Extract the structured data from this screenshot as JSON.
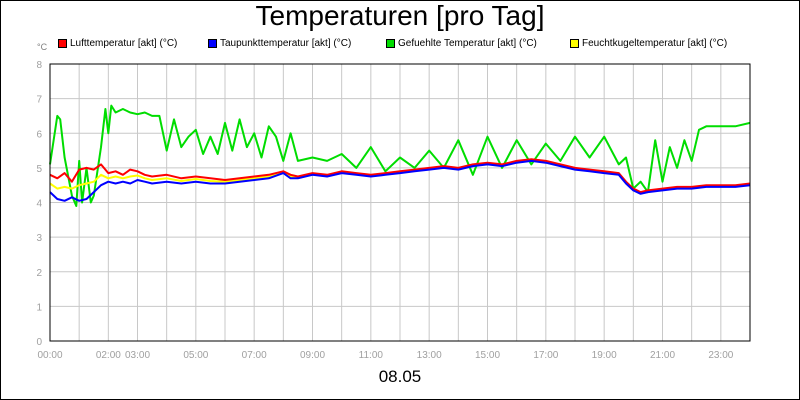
{
  "chart_data": {
    "type": "line",
    "title": "Temperaturen [pro Tag]",
    "ylabel": "°C",
    "xlabel": "08.05",
    "ylim": [
      0,
      8
    ],
    "yticks": [
      0,
      1,
      2,
      3,
      4,
      5,
      6,
      7,
      8
    ],
    "xlim": [
      0,
      24
    ],
    "xticks": [
      {
        "value": 0,
        "label": "00:00"
      },
      {
        "value": 2,
        "label": "02:00"
      },
      {
        "value": 3,
        "label": "03:00"
      },
      {
        "value": 5,
        "label": "05:00"
      },
      {
        "value": 7,
        "label": "07:00"
      },
      {
        "value": 9,
        "label": "09:00"
      },
      {
        "value": 11,
        "label": "11:00"
      },
      {
        "value": 13,
        "label": "13:00"
      },
      {
        "value": 15,
        "label": "15:00"
      },
      {
        "value": 17,
        "label": "17:00"
      },
      {
        "value": 19,
        "label": "19:00"
      },
      {
        "value": 21,
        "label": "21:00"
      },
      {
        "value": 23,
        "label": "23:00"
      }
    ],
    "grid": true,
    "legend_position": "top",
    "series": [
      {
        "name": "Lufttemperatur [akt] (°C)",
        "color": "#ff0000",
        "x": [
          0,
          0.25,
          0.5,
          0.75,
          1,
          1.25,
          1.5,
          1.75,
          2,
          2.25,
          2.5,
          2.75,
          3,
          3.25,
          3.5,
          4,
          4.5,
          5,
          5.5,
          6,
          6.5,
          7,
          7.5,
          8,
          8.25,
          8.5,
          9,
          9.5,
          10,
          10.5,
          11,
          11.5,
          12,
          12.5,
          13,
          13.5,
          14,
          14.5,
          15,
          15.5,
          16,
          16.5,
          17,
          17.5,
          18,
          18.5,
          19,
          19.5,
          19.75,
          20,
          20.25,
          20.5,
          21,
          21.5,
          22,
          22.5,
          23,
          23.5,
          24
        ],
        "y": [
          4.8,
          4.7,
          4.85,
          4.6,
          4.95,
          5.0,
          4.95,
          5.1,
          4.85,
          4.9,
          4.8,
          4.95,
          4.9,
          4.8,
          4.75,
          4.8,
          4.7,
          4.75,
          4.7,
          4.65,
          4.7,
          4.75,
          4.8,
          4.9,
          4.8,
          4.75,
          4.85,
          4.8,
          4.9,
          4.85,
          4.8,
          4.85,
          4.9,
          4.95,
          5.0,
          5.05,
          5.0,
          5.1,
          5.15,
          5.1,
          5.2,
          5.25,
          5.2,
          5.1,
          5.0,
          4.95,
          4.9,
          4.85,
          4.6,
          4.4,
          4.3,
          4.35,
          4.4,
          4.45,
          4.45,
          4.5,
          4.5,
          4.5,
          4.55
        ]
      },
      {
        "name": "Taupunkttemperatur [akt] (°C)",
        "color": "#0000ff",
        "x": [
          0,
          0.25,
          0.5,
          0.75,
          1,
          1.25,
          1.5,
          1.75,
          2,
          2.25,
          2.5,
          2.75,
          3,
          3.25,
          3.5,
          4,
          4.5,
          5,
          5.5,
          6,
          6.5,
          7,
          7.5,
          8,
          8.25,
          8.5,
          9,
          9.5,
          10,
          10.5,
          11,
          11.5,
          12,
          12.5,
          13,
          13.5,
          14,
          14.5,
          15,
          15.5,
          16,
          16.5,
          17,
          17.5,
          18,
          18.5,
          19,
          19.5,
          19.75,
          20,
          20.25,
          20.5,
          21,
          21.5,
          22,
          22.5,
          23,
          23.5,
          24
        ],
        "y": [
          4.3,
          4.1,
          4.05,
          4.15,
          4.05,
          4.1,
          4.3,
          4.5,
          4.6,
          4.55,
          4.6,
          4.55,
          4.65,
          4.6,
          4.55,
          4.6,
          4.55,
          4.6,
          4.55,
          4.55,
          4.6,
          4.65,
          4.7,
          4.85,
          4.7,
          4.7,
          4.8,
          4.75,
          4.85,
          4.8,
          4.75,
          4.8,
          4.85,
          4.9,
          4.95,
          5.0,
          4.95,
          5.05,
          5.1,
          5.05,
          5.15,
          5.2,
          5.15,
          5.05,
          4.95,
          4.9,
          4.85,
          4.8,
          4.55,
          4.35,
          4.25,
          4.3,
          4.35,
          4.4,
          4.4,
          4.45,
          4.45,
          4.45,
          4.5
        ]
      },
      {
        "name": "Gefuehlte Temperatur [akt] (°C)",
        "color": "#00dd00",
        "x": [
          0,
          0.25,
          0.35,
          0.5,
          0.75,
          0.9,
          1.0,
          1.1,
          1.25,
          1.4,
          1.5,
          1.75,
          1.9,
          2.0,
          2.1,
          2.25,
          2.5,
          2.75,
          3.0,
          3.25,
          3.5,
          3.75,
          4.0,
          4.25,
          4.5,
          4.75,
          5.0,
          5.25,
          5.5,
          5.75,
          6.0,
          6.25,
          6.5,
          6.75,
          7.0,
          7.25,
          7.5,
          7.75,
          8.0,
          8.25,
          8.5,
          9.0,
          9.5,
          10.0,
          10.5,
          11.0,
          11.5,
          12.0,
          12.5,
          13.0,
          13.5,
          14.0,
          14.5,
          15.0,
          15.5,
          16.0,
          16.5,
          17.0,
          17.5,
          18.0,
          18.5,
          19.0,
          19.5,
          19.75,
          20.0,
          20.25,
          20.5,
          20.75,
          21.0,
          21.25,
          21.5,
          21.75,
          22.0,
          22.25,
          22.5,
          23.0,
          23.5,
          24.0
        ],
        "y": [
          5.1,
          6.5,
          6.4,
          5.3,
          4.2,
          3.9,
          5.2,
          4.0,
          5.0,
          4.0,
          4.2,
          5.6,
          6.7,
          6.0,
          6.8,
          6.6,
          6.7,
          6.6,
          6.55,
          6.6,
          6.5,
          6.5,
          5.5,
          6.4,
          5.6,
          5.9,
          6.1,
          5.4,
          5.9,
          5.4,
          6.3,
          5.5,
          6.4,
          5.6,
          6.0,
          5.3,
          6.2,
          5.9,
          5.2,
          6.0,
          5.2,
          5.3,
          5.2,
          5.4,
          5.0,
          5.6,
          4.9,
          5.3,
          5.0,
          5.5,
          5.0,
          5.8,
          4.8,
          5.9,
          5.0,
          5.8,
          5.1,
          5.7,
          5.2,
          5.9,
          5.3,
          5.9,
          5.1,
          5.3,
          4.4,
          4.6,
          4.3,
          5.8,
          4.6,
          5.6,
          5.0,
          5.8,
          5.2,
          6.1,
          6.2,
          6.2,
          6.2,
          6.3
        ]
      },
      {
        "name": "Feuchtkugeltemperatur [akt] (°C)",
        "color": "#ffff00",
        "x": [
          0,
          0.25,
          0.5,
          0.75,
          1,
          1.25,
          1.5,
          1.75,
          2,
          2.25,
          2.5,
          2.75,
          3,
          3.25,
          3.5,
          4,
          4.5,
          5,
          5.5,
          6,
          6.5,
          7,
          7.5,
          8,
          8.25,
          8.5,
          9,
          9.5,
          10,
          10.5,
          11,
          11.5,
          12,
          12.5,
          13,
          13.5,
          14,
          14.5,
          15,
          15.5,
          16,
          16.5,
          17,
          17.5,
          18,
          18.5,
          19,
          19.5,
          19.75,
          20,
          20.25,
          20.5,
          21,
          21.5,
          22,
          22.5,
          23,
          23.5,
          24
        ],
        "y": [
          4.55,
          4.4,
          4.45,
          4.4,
          4.5,
          4.55,
          4.6,
          4.8,
          4.7,
          4.75,
          4.7,
          4.75,
          4.78,
          4.7,
          4.65,
          4.7,
          4.62,
          4.68,
          4.62,
          4.6,
          4.65,
          4.7,
          4.75,
          4.88,
          4.75,
          4.72,
          4.82,
          4.78,
          4.88,
          4.82,
          4.78,
          4.82,
          4.88,
          4.92,
          4.98,
          5.02,
          4.98,
          5.08,
          5.12,
          5.08,
          5.18,
          5.22,
          5.18,
          5.08,
          4.98,
          4.92,
          4.88,
          4.82,
          4.58,
          4.38,
          4.28,
          4.32,
          4.38,
          4.42,
          4.42,
          4.48,
          4.48,
          4.48,
          4.52
        ]
      }
    ]
  }
}
